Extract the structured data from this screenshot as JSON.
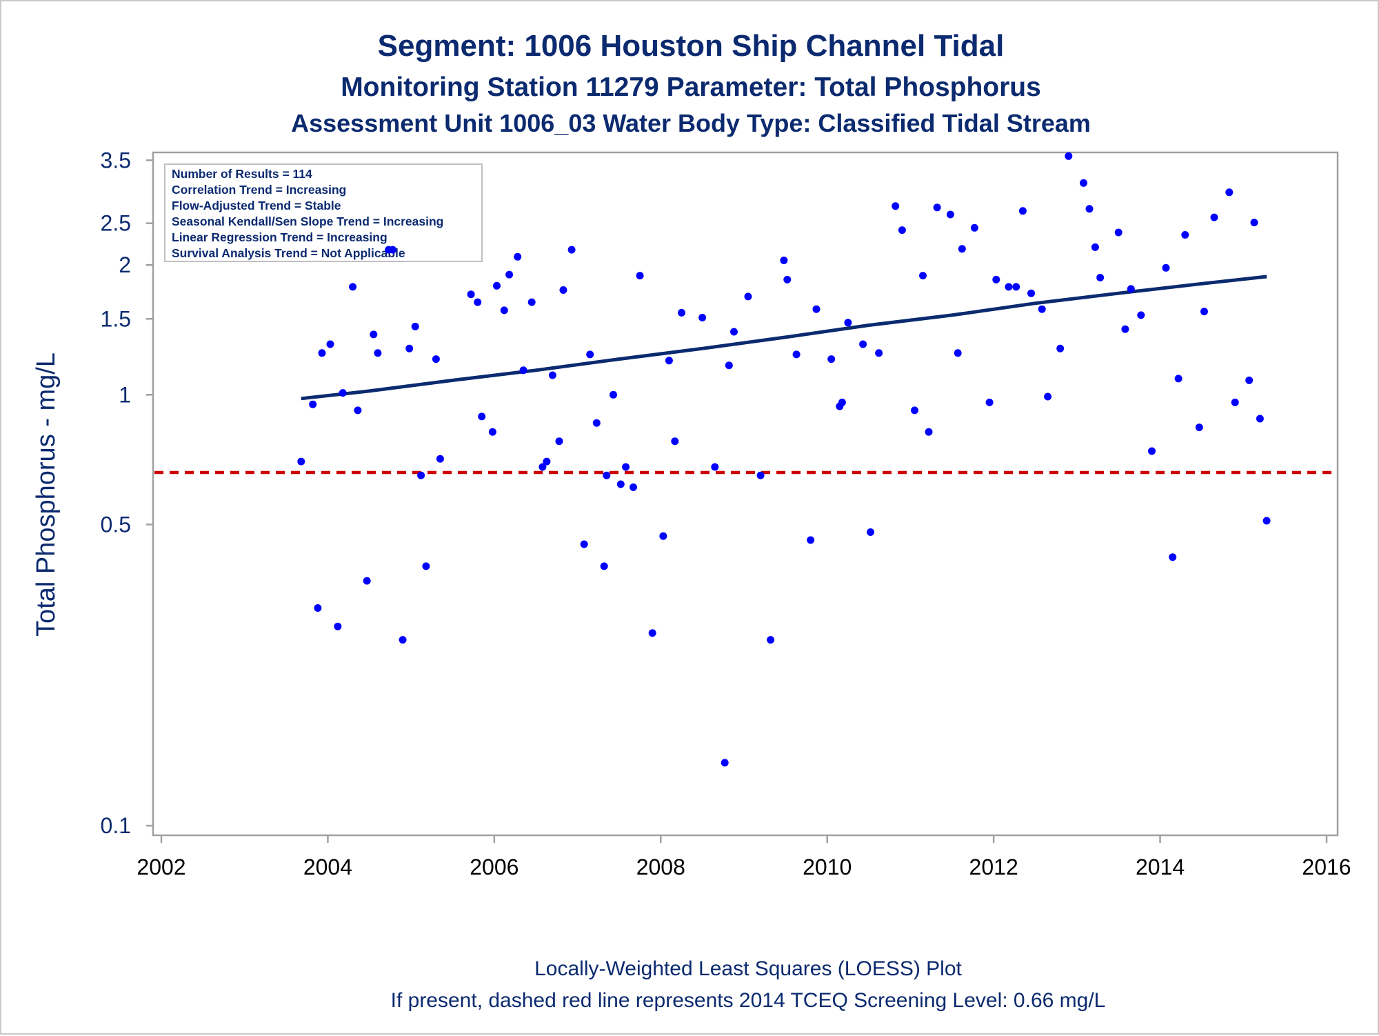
{
  "chart_data": {
    "type": "scatter",
    "title": "Segment: 1006  Houston Ship Channel Tidal",
    "subtitle": "Monitoring Station 11279 Parameter: Total Phosphorus",
    "subtitle2": "Assessment Unit 1006_03   Water Body Type: Classified Tidal Stream",
    "xlabel": "",
    "ylabel": "Total Phosphorus - mg/L",
    "y_scale": "log",
    "xlim": [
      2002,
      2016
    ],
    "ylim": [
      0.095,
      3.65
    ],
    "x_ticks": [
      2002,
      2004,
      2006,
      2008,
      2010,
      2012,
      2014,
      2016
    ],
    "x_tick_labels": [
      "2002",
      "2004",
      "2006",
      "2008",
      "2010",
      "2012",
      "2014",
      "2016"
    ],
    "y_ticks": [
      0.1,
      0.5,
      1,
      1.5,
      2,
      2.5,
      3.5
    ],
    "y_tick_labels": [
      "0.1",
      "0.5",
      "1",
      "1.5",
      "2",
      "2.5",
      "3.5"
    ],
    "grid": false,
    "stats_box": {
      "placement": "top-left",
      "lines": [
        "Number of Results = 114",
        "Correlation Trend = Increasing",
        "Flow-Adjusted Trend = Stable",
        "Seasonal Kendall/Sen Slope Trend = Increasing",
        "Linear Regression Trend = Increasing",
        "Survival Analysis Trend = Not Applicable"
      ]
    },
    "screening_level": {
      "value": 0.66,
      "color": "#cc0000",
      "style": "dashed"
    },
    "footnotes": [
      "Locally-Weighted Least Squares (LOESS) Plot",
      "If present, dashed red line represents 2014 TCEQ Screening Level: 0.66 mg/L"
    ],
    "colors": {
      "points": "#0000ff",
      "trend": "#0b2a6f",
      "text": "#0b2a6f",
      "frame": "#a0a0a0"
    },
    "series": [
      {
        "type": "scatter",
        "points": [
          [
            2003.68,
            0.7
          ],
          [
            2003.82,
            0.95
          ],
          [
            2003.88,
            0.32
          ],
          [
            2003.93,
            1.25
          ],
          [
            2004.03,
            1.31
          ],
          [
            2004.12,
            0.29
          ],
          [
            2004.18,
            1.01
          ],
          [
            2004.3,
            1.78
          ],
          [
            2004.36,
            0.92
          ],
          [
            2004.47,
            0.37
          ],
          [
            2004.55,
            1.38
          ],
          [
            2004.6,
            1.25
          ],
          [
            2004.73,
            2.17
          ],
          [
            2004.78,
            2.17
          ],
          [
            2004.9,
            0.27
          ],
          [
            2004.98,
            1.28
          ],
          [
            2005.05,
            1.44
          ],
          [
            2005.12,
            0.65
          ],
          [
            2005.18,
            0.4
          ],
          [
            2005.3,
            1.21
          ],
          [
            2005.35,
            0.71
          ],
          [
            2005.72,
            1.71
          ],
          [
            2005.8,
            1.64
          ],
          [
            2005.85,
            0.89
          ],
          [
            2005.98,
            0.82
          ],
          [
            2006.03,
            1.79
          ],
          [
            2006.12,
            1.57
          ],
          [
            2006.18,
            1.9
          ],
          [
            2006.28,
            2.09
          ],
          [
            2006.35,
            1.14
          ],
          [
            2006.45,
            1.64
          ],
          [
            2006.58,
            0.68
          ],
          [
            2006.63,
            0.7
          ],
          [
            2006.7,
            1.11
          ],
          [
            2006.78,
            0.78
          ],
          [
            2006.83,
            1.75
          ],
          [
            2006.93,
            2.17
          ],
          [
            2007.08,
            0.45
          ],
          [
            2007.15,
            1.24
          ],
          [
            2007.23,
            0.86
          ],
          [
            2007.32,
            0.4
          ],
          [
            2007.35,
            0.65
          ],
          [
            2007.43,
            1.0
          ],
          [
            2007.52,
            0.62
          ],
          [
            2007.58,
            0.68
          ],
          [
            2007.67,
            0.61
          ],
          [
            2007.75,
            1.89
          ],
          [
            2007.9,
            0.28
          ],
          [
            2008.03,
            0.47
          ],
          [
            2008.1,
            1.2
          ],
          [
            2008.17,
            0.78
          ],
          [
            2008.25,
            1.55
          ],
          [
            2008.5,
            1.51
          ],
          [
            2008.65,
            0.68
          ],
          [
            2008.77,
            0.14
          ],
          [
            2008.82,
            1.17
          ],
          [
            2008.88,
            1.4
          ],
          [
            2009.05,
            1.69
          ],
          [
            2009.2,
            0.65
          ],
          [
            2009.32,
            0.27
          ],
          [
            2009.48,
            2.05
          ],
          [
            2009.52,
            1.85
          ],
          [
            2009.63,
            1.24
          ],
          [
            2009.8,
            0.46
          ],
          [
            2009.87,
            1.58
          ],
          [
            2010.05,
            1.21
          ],
          [
            2010.15,
            0.94
          ],
          [
            2010.18,
            0.96
          ],
          [
            2010.25,
            1.47
          ],
          [
            2010.43,
            1.31
          ],
          [
            2010.52,
            0.48
          ],
          [
            2010.62,
            1.25
          ],
          [
            2010.82,
            2.74
          ],
          [
            2010.9,
            2.41
          ],
          [
            2011.05,
            0.92
          ],
          [
            2011.15,
            1.89
          ],
          [
            2011.22,
            0.82
          ],
          [
            2011.32,
            2.72
          ],
          [
            2011.48,
            2.62
          ],
          [
            2011.57,
            1.25
          ],
          [
            2011.62,
            2.18
          ],
          [
            2011.77,
            2.44
          ],
          [
            2011.95,
            0.96
          ],
          [
            2012.03,
            1.85
          ],
          [
            2012.18,
            1.78
          ],
          [
            2012.27,
            1.78
          ],
          [
            2012.35,
            2.67
          ],
          [
            2012.45,
            1.72
          ],
          [
            2012.58,
            1.58
          ],
          [
            2012.65,
            0.99
          ],
          [
            2012.8,
            1.28
          ],
          [
            2012.9,
            3.58
          ],
          [
            2013.08,
            3.1
          ],
          [
            2013.15,
            2.7
          ],
          [
            2013.22,
            2.2
          ],
          [
            2013.28,
            1.87
          ],
          [
            2013.5,
            2.38
          ],
          [
            2013.58,
            1.42
          ],
          [
            2013.65,
            1.76
          ],
          [
            2013.77,
            1.53
          ],
          [
            2013.9,
            0.74
          ],
          [
            2014.07,
            1.97
          ],
          [
            2014.15,
            0.42
          ],
          [
            2014.22,
            1.09
          ],
          [
            2014.3,
            2.35
          ],
          [
            2014.47,
            0.84
          ],
          [
            2014.53,
            1.56
          ],
          [
            2014.65,
            2.58
          ],
          [
            2014.83,
            2.95
          ],
          [
            2014.9,
            0.96
          ],
          [
            2015.07,
            1.08
          ],
          [
            2015.13,
            2.51
          ],
          [
            2015.2,
            0.88
          ],
          [
            2015.28,
            0.51
          ]
        ]
      },
      {
        "type": "line",
        "points": [
          [
            2003.68,
            0.98
          ],
          [
            2004.5,
            1.02
          ],
          [
            2005.5,
            1.08
          ],
          [
            2006.5,
            1.14
          ],
          [
            2007.5,
            1.21
          ],
          [
            2008.5,
            1.28
          ],
          [
            2009.5,
            1.36
          ],
          [
            2010.5,
            1.45
          ],
          [
            2011.5,
            1.53
          ],
          [
            2012.5,
            1.63
          ],
          [
            2013.5,
            1.72
          ],
          [
            2014.5,
            1.81
          ],
          [
            2015.28,
            1.88
          ]
        ]
      }
    ]
  }
}
